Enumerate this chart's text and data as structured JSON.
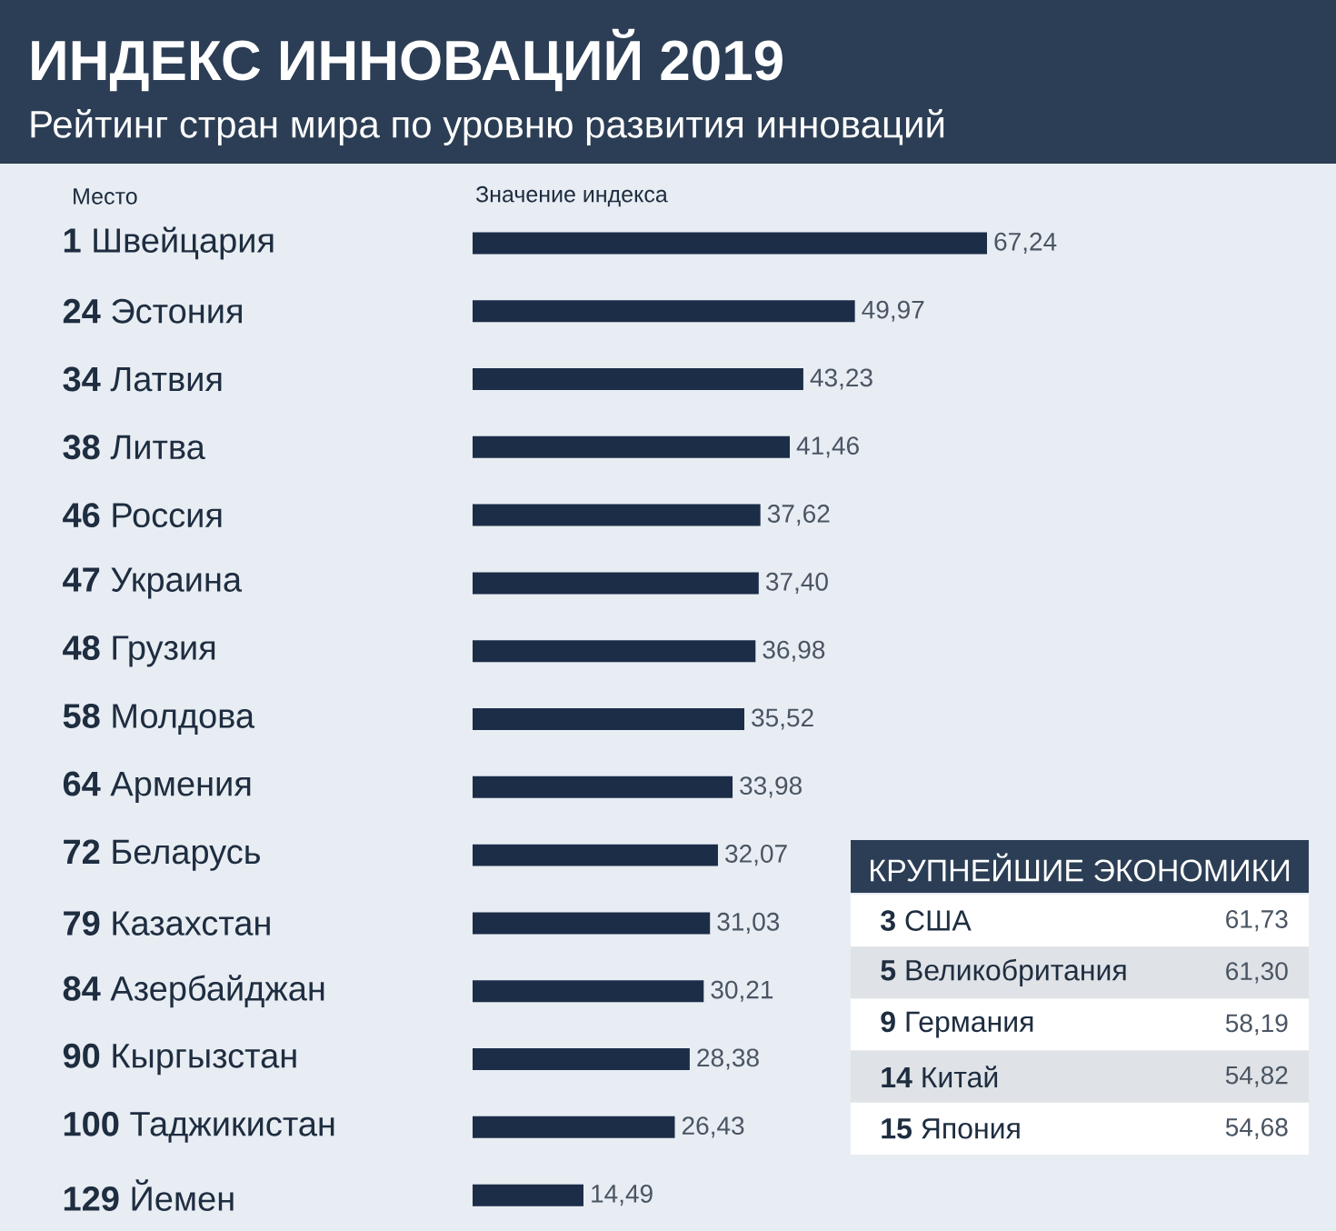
{
  "chart_data": [
    {
      "type": "bar",
      "orientation": "horizontal",
      "title": "ИНДЕКС ИННОВАЦИЙ 2019",
      "subtitle": "Рейтинг стран мира по уровню развития инноваций",
      "annotations": [
        "Место",
        "Значение индекса"
      ],
      "categories": [
        "**1** Швейцария",
        "**24** Эстония",
        "**34** Латвия",
        "**38** Литва",
        "**46** Россия",
        "**47** Украина",
        "**48** Грузия",
        "**58** Молдова",
        "**64** Армения",
        "**72** Беларусь",
        "**79** Казахстан",
        "**84** Азербайджан",
        "**90** Кыргызстан",
        "**100** Таджикистан",
        "**129** Йемен"
      ],
      "values": [
        67.24,
        49.97,
        43.23,
        41.46,
        37.62,
        37.4,
        36.98,
        35.52,
        33.98,
        32.07,
        31.03,
        30.21,
        28.38,
        26.43,
        14.49
      ],
      "value_labels": [
        "67,24",
        "49,97",
        "43,23",
        "41,46",
        "37,62",
        "37,40",
        "36,98",
        "35,52",
        "33,98",
        "32,07",
        "31,03",
        "30,21",
        "28,38",
        "26,43",
        "14,49"
      ],
      "color": "#1b2d47",
      "tick_labels": "y"
    },
    {
      "type": "other",
      "title": "КРУПНЕЙШИЕ ЭКОНОМИКИ",
      "categories": [
        "**3** США",
        "**5** Великобритания",
        "**9** Германия",
        "**14** Китай",
        "**15** Япония"
      ],
      "values": [
        61.73,
        61.3,
        58.19,
        54.82,
        54.68
      ],
      "value_labels": [
        "61,73",
        "61,30",
        "58,19",
        "54,82",
        "54,68"
      ],
      "colors": [
        "#ffffff",
        "#dfe2e6",
        "#ffffff",
        "#dfe2e6",
        "#ffffff"
      ]
    }
  ]
}
